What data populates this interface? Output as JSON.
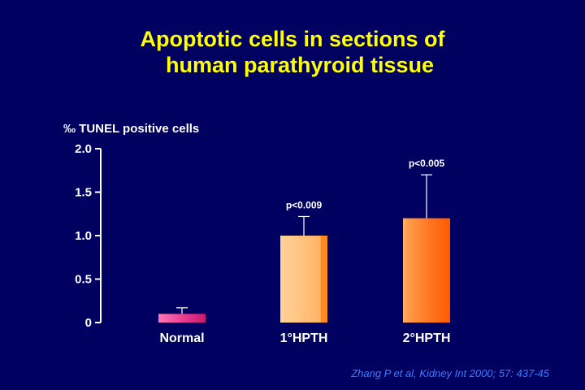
{
  "slide": {
    "title_line1": "Apoptotic cells in sections of",
    "title_line2": "human parathyroid tissue",
    "citation": "Zhang P et al, Kidney Int 2000; 57: 437-45"
  },
  "colors": {
    "background": "#000060",
    "title": "#ffff00",
    "axis": "#ffffff",
    "citation": "#3a7dff",
    "normal_bar": "#e0308a",
    "hpth1_bar": "#ffb060",
    "hpth2_bar": "#ff6a10"
  },
  "chart_data": {
    "type": "bar",
    "title": "Apoptotic cells in sections of human parathyroid tissue",
    "ylabel": "‰ TUNEL positive cells",
    "xlabel": "",
    "ylim": [
      0,
      2.0
    ],
    "yticks": [
      {
        "value": 0,
        "label": "0"
      },
      {
        "value": 0.5,
        "label": "0.5"
      },
      {
        "value": 1.0,
        "label": "1.0"
      },
      {
        "value": 1.5,
        "label": "1.5"
      },
      {
        "value": 2.0,
        "label": "2.0"
      }
    ],
    "categories": [
      "Normal",
      "1°HPTH",
      "2°HPTH"
    ],
    "values": [
      0.1,
      1.0,
      1.2
    ],
    "error_upper": [
      0.17,
      1.22,
      1.7
    ],
    "annotations": [
      "",
      "p<0.009",
      "p<0.005"
    ],
    "grid": false,
    "legend": "none"
  }
}
